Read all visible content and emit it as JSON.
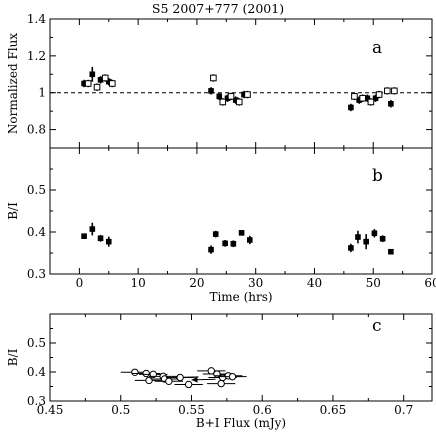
{
  "figure": {
    "title": "S5 2007+777 (2001)"
  },
  "chart_data": [
    {
      "panel": "a",
      "type": "scatter",
      "ylabel": "Normalized Flux",
      "xlim": [
        -5,
        60
      ],
      "ylim": [
        0.7,
        1.4
      ],
      "xticks": [
        0,
        10,
        20,
        30,
        40,
        50,
        60
      ],
      "yticks": [
        0.8,
        1.0,
        1.2,
        1.4
      ],
      "ytick_labels": [
        "0.8",
        "1",
        "1.2",
        "1.4"
      ],
      "reference_line": {
        "y": 1.0,
        "style": "dashed"
      },
      "series": [
        {
          "marker": "filled-square",
          "points": [
            {
              "x": 0.8,
              "y": 1.05,
              "err": 0.02
            },
            {
              "x": 2.2,
              "y": 1.1,
              "err": 0.04
            },
            {
              "x": 3.6,
              "y": 1.07,
              "err": 0.02
            },
            {
              "x": 5.0,
              "y": 1.06,
              "err": 0.02
            },
            {
              "x": 22.4,
              "y": 1.01,
              "err": 0.02
            },
            {
              "x": 23.8,
              "y": 0.98,
              "err": 0.02
            },
            {
              "x": 25.2,
              "y": 0.97,
              "err": 0.02
            },
            {
              "x": 26.6,
              "y": 0.96,
              "err": 0.02
            },
            {
              "x": 28.0,
              "y": 0.99,
              "err": 0.02
            },
            {
              "x": 46.2,
              "y": 0.92,
              "err": 0.02
            },
            {
              "x": 47.6,
              "y": 0.96,
              "err": 0.02
            },
            {
              "x": 49.0,
              "y": 0.97,
              "err": 0.02
            },
            {
              "x": 50.4,
              "y": 0.97,
              "err": 0.02
            },
            {
              "x": 53.0,
              "y": 0.94,
              "err": 0.02
            }
          ]
        },
        {
          "marker": "open-square",
          "points": [
            {
              "x": 1.5,
              "y": 1.05,
              "err": 0.02
            },
            {
              "x": 3.0,
              "y": 1.03,
              "err": 0.02
            },
            {
              "x": 4.4,
              "y": 1.08,
              "err": 0.02
            },
            {
              "x": 5.6,
              "y": 1.05,
              "err": 0.02
            },
            {
              "x": 22.8,
              "y": 1.08,
              "err": 0.02
            },
            {
              "x": 24.4,
              "y": 0.95,
              "err": 0.02
            },
            {
              "x": 25.8,
              "y": 0.98,
              "err": 0.02
            },
            {
              "x": 27.2,
              "y": 0.95,
              "err": 0.02
            },
            {
              "x": 28.6,
              "y": 0.99,
              "err": 0.02
            },
            {
              "x": 46.8,
              "y": 0.98,
              "err": 0.02
            },
            {
              "x": 48.2,
              "y": 0.97,
              "err": 0.02
            },
            {
              "x": 49.6,
              "y": 0.95,
              "err": 0.02
            },
            {
              "x": 51.0,
              "y": 0.99,
              "err": 0.02
            },
            {
              "x": 52.4,
              "y": 1.01,
              "err": 0.02
            },
            {
              "x": 53.6,
              "y": 1.01,
              "err": 0.02
            }
          ]
        }
      ]
    },
    {
      "panel": "b",
      "type": "scatter",
      "xlabel": "Time (hrs)",
      "ylabel": "B/I",
      "xlim": [
        -5,
        60
      ],
      "ylim": [
        0.3,
        0.6
      ],
      "xticks": [
        0,
        10,
        20,
        30,
        40,
        50,
        60
      ],
      "yticks": [
        0.3,
        0.4,
        0.5
      ],
      "ytick_labels": [
        "0.3",
        "0.4",
        "0.5"
      ],
      "series": [
        {
          "marker": "filled-square",
          "points": [
            {
              "x": 0.8,
              "y": 0.39,
              "err": 0.005
            },
            {
              "x": 2.2,
              "y": 0.407,
              "err": 0.015
            },
            {
              "x": 3.6,
              "y": 0.385,
              "err": 0.008
            },
            {
              "x": 5.0,
              "y": 0.377,
              "err": 0.012
            },
            {
              "x": 22.4,
              "y": 0.358,
              "err": 0.01
            },
            {
              "x": 23.2,
              "y": 0.395,
              "err": 0.008
            },
            {
              "x": 24.8,
              "y": 0.373,
              "err": 0.008
            },
            {
              "x": 26.2,
              "y": 0.372,
              "err": 0.008
            },
            {
              "x": 27.6,
              "y": 0.398,
              "err": 0.006
            },
            {
              "x": 29.0,
              "y": 0.381,
              "err": 0.01
            },
            {
              "x": 46.2,
              "y": 0.362,
              "err": 0.01
            },
            {
              "x": 47.4,
              "y": 0.388,
              "err": 0.015
            },
            {
              "x": 48.8,
              "y": 0.377,
              "err": 0.018
            },
            {
              "x": 50.2,
              "y": 0.397,
              "err": 0.01
            },
            {
              "x": 51.6,
              "y": 0.384,
              "err": 0.008
            },
            {
              "x": 53.0,
              "y": 0.353,
              "err": 0.006
            }
          ]
        }
      ]
    },
    {
      "panel": "c",
      "type": "scatter",
      "xlabel": "B+I Flux (mJy)",
      "ylabel": "B/I",
      "xlim": [
        0.45,
        0.72
      ],
      "ylim": [
        0.3,
        0.6
      ],
      "xticks": [
        0.45,
        0.5,
        0.55,
        0.6,
        0.65,
        0.7
      ],
      "xtick_labels": [
        "0.45",
        "0.5",
        "0.55",
        "0.6",
        "0.65",
        "0.7"
      ],
      "yticks": [
        0.3,
        0.4,
        0.5
      ],
      "ytick_labels": [
        "0.3",
        "0.4",
        "0.5"
      ],
      "series": [
        {
          "marker": "open-circle",
          "points": [
            {
              "x": 0.51,
              "y": 0.399,
              "xerr": 0.01,
              "yerr": 0.006
            },
            {
              "x": 0.518,
              "y": 0.395,
              "xerr": 0.01,
              "yerr": 0.006
            },
            {
              "x": 0.523,
              "y": 0.392,
              "xerr": 0.01,
              "yerr": 0.006
            },
            {
              "x": 0.53,
              "y": 0.385,
              "xerr": 0.01,
              "yerr": 0.006
            },
            {
              "x": 0.52,
              "y": 0.371,
              "xerr": 0.01,
              "yerr": 0.006
            },
            {
              "x": 0.531,
              "y": 0.376,
              "xerr": 0.01,
              "yerr": 0.006
            },
            {
              "x": 0.542,
              "y": 0.381,
              "xerr": 0.01,
              "yerr": 0.006
            },
            {
              "x": 0.534,
              "y": 0.368,
              "xerr": 0.01,
              "yerr": 0.006
            },
            {
              "x": 0.548,
              "y": 0.357,
              "xerr": 0.01,
              "yerr": 0.006
            },
            {
              "x": 0.564,
              "y": 0.404,
              "xerr": 0.01,
              "yerr": 0.008
            },
            {
              "x": 0.568,
              "y": 0.393,
              "xerr": 0.01,
              "yerr": 0.008
            },
            {
              "x": 0.572,
              "y": 0.381,
              "xerr": 0.01,
              "yerr": 0.008
            },
            {
              "x": 0.576,
              "y": 0.387,
              "xerr": 0.01,
              "yerr": 0.008
            },
            {
              "x": 0.579,
              "y": 0.384,
              "xerr": 0.01,
              "yerr": 0.008
            },
            {
              "x": 0.571,
              "y": 0.36,
              "xerr": 0.01,
              "yerr": 0.008
            }
          ]
        }
      ],
      "annotations": [
        {
          "type": "arrow",
          "from": [
            0.555,
            0.383
          ],
          "to": [
            0.538,
            0.381
          ]
        },
        {
          "type": "arrow",
          "from": [
            0.567,
            0.375
          ],
          "to": [
            0.55,
            0.373
          ]
        }
      ]
    }
  ]
}
